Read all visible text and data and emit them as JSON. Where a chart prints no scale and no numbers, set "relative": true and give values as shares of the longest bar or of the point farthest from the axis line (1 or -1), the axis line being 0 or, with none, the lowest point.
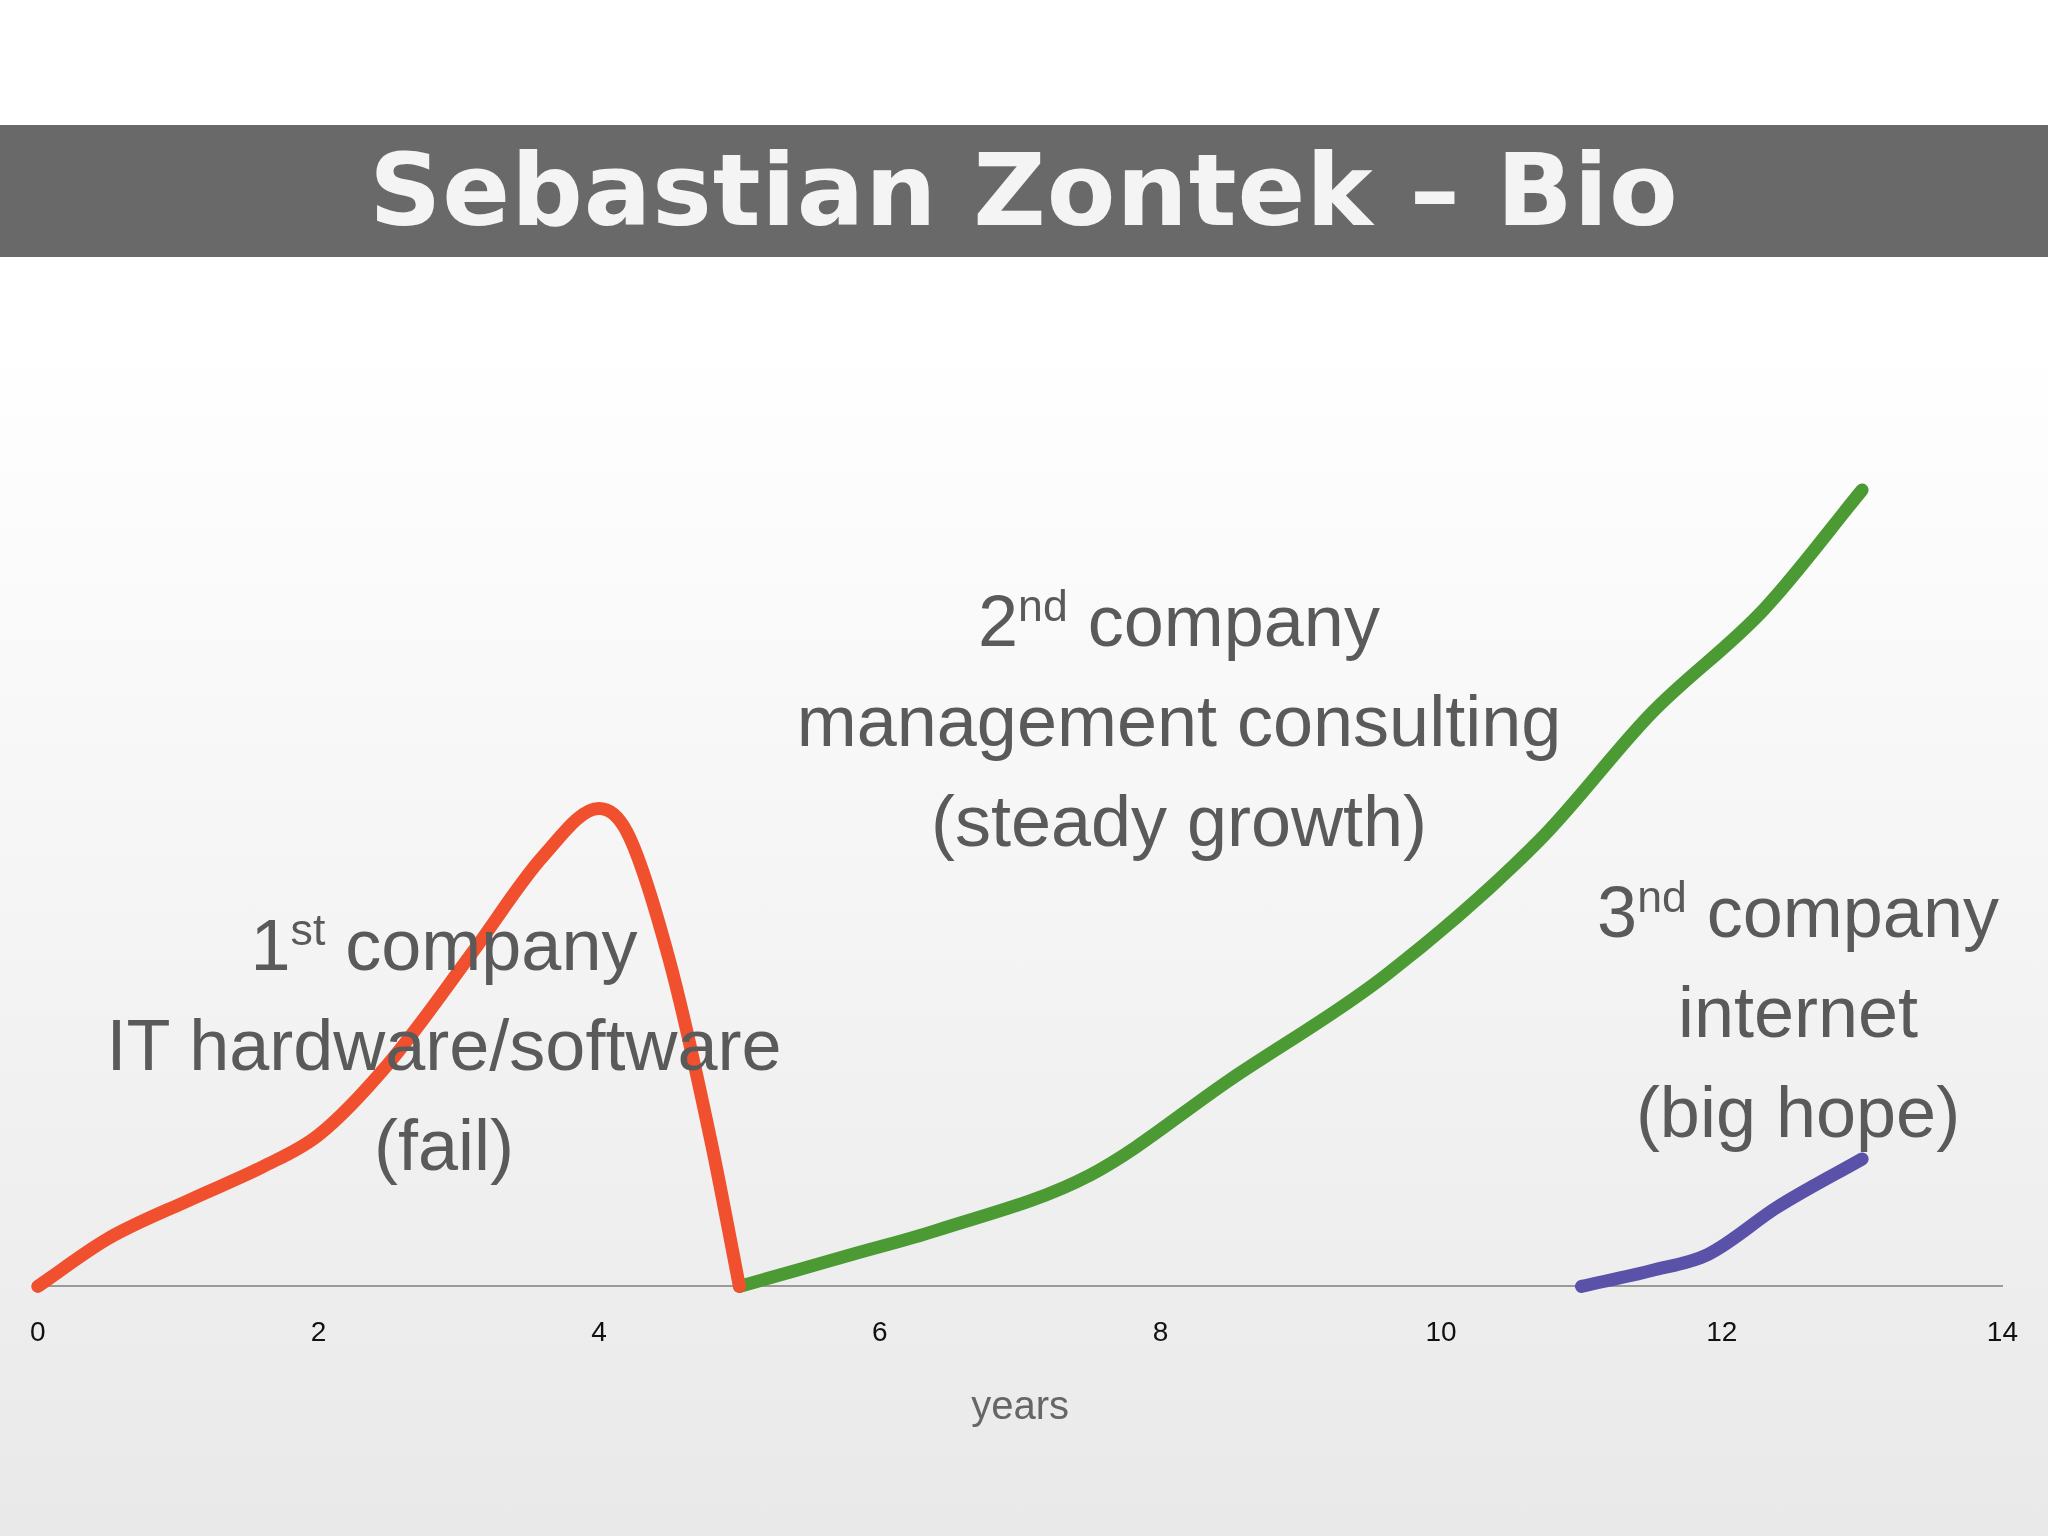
{
  "chart_data": {
    "type": "line",
    "title": "Sebastian Zontek – Bio",
    "xlabel": "years",
    "relative": true,
    "xlim": [
      0,
      14
    ],
    "xticks": [
      0,
      2,
      4,
      6,
      8,
      10,
      12,
      14
    ],
    "tick_labels": "x",
    "grid": false,
    "legend": false,
    "marker": "none",
    "series": [
      {
        "color": "#f0502d",
        "x": [
          0,
          0.5,
          1.1,
          1.6,
          2,
          2.5,
          3.1,
          3.6,
          4,
          4.2,
          4.5,
          4.8,
          5
        ],
        "values": [
          0,
          0.06,
          0.11,
          0.15,
          0.19,
          0.28,
          0.42,
          0.54,
          0.6,
          0.57,
          0.41,
          0.18,
          0
        ]
      },
      {
        "color": "#4c9a34",
        "x": [
          5,
          5.8,
          6.4,
          7.5,
          8.5,
          9.6,
          10.7,
          11.5,
          12.3,
          13
        ],
        "values": [
          0,
          0.04,
          0.07,
          0.14,
          0.26,
          0.39,
          0.56,
          0.72,
          0.85,
          1
        ]
      },
      {
        "color": "#5a52a8",
        "x": [
          11,
          11.5,
          11.9,
          12.4,
          13
        ],
        "values": [
          0,
          0.02,
          0.04,
          0.1,
          0.16
        ]
      }
    ],
    "annotations": [
      "1$^{st}$ company\nIT hardware/software\n(fail)",
      "2$^{nd}$ company\nmanagement consulting\n(steady growth)",
      "3$^{nd}$ company\ninternet\n(big hope)"
    ]
  }
}
